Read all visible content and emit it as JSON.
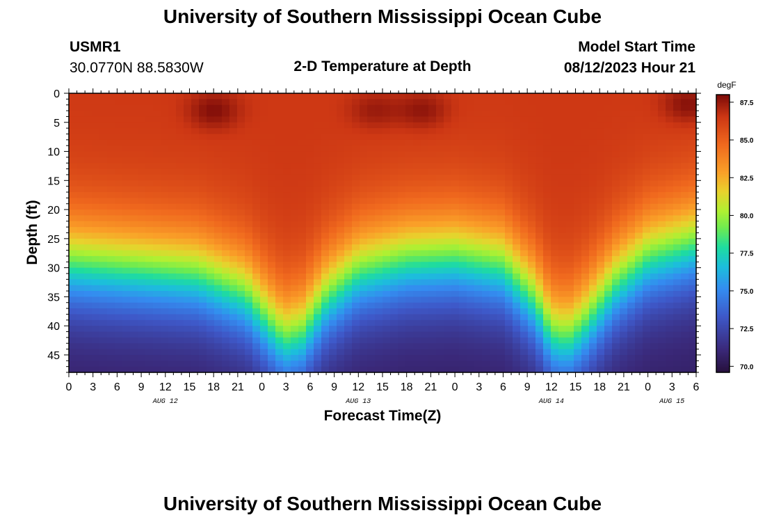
{
  "page": {
    "title_top": "University of Southern Mississippi Ocean Cube",
    "title_bottom": "University of Southern Mississippi Ocean Cube"
  },
  "station": {
    "id": "USMR1",
    "coords": "30.0770N  88.5830W"
  },
  "model": {
    "label": "Model Start Time",
    "start": "08/12/2023 Hour 21"
  },
  "chart_data": {
    "type": "heatmap",
    "title": "2-D Temperature at Depth",
    "xlabel": "Forecast Time(Z)",
    "ylabel": "Depth (ft)",
    "x_range_hours": [
      0,
      78
    ],
    "x_tick_labels": [
      "0",
      "3",
      "6",
      "9",
      "12",
      "15",
      "18",
      "21",
      "0",
      "3",
      "6",
      "9",
      "12",
      "15",
      "18",
      "21",
      "0",
      "3",
      "6",
      "9",
      "12",
      "15",
      "18",
      "21",
      "0",
      "3",
      "6"
    ],
    "date_labels": [
      {
        "label": "AUG 12",
        "hour": 12
      },
      {
        "label": "AUG 13",
        "hour": 36
      },
      {
        "label": "AUG 14",
        "hour": 60
      },
      {
        "label": "AUG 15",
        "hour": 75
      }
    ],
    "y_range_ft": [
      0,
      48
    ],
    "y_ticks": [
      0,
      5,
      10,
      15,
      20,
      25,
      30,
      35,
      40,
      45
    ],
    "colorbar": {
      "unit": "degF",
      "min": 69.6,
      "max": 88.0,
      "tick_values": [
        70.0,
        72.5,
        75.0,
        77.5,
        80.0,
        82.5,
        85.0,
        87.5
      ],
      "tick_labels": [
        "70.0",
        "72.5",
        "75.0",
        "77.5",
        "80.0",
        "82.5",
        "85.0",
        "87.5"
      ]
    },
    "field": {
      "surface_temp_degF": 86.5,
      "bottom_temp_degF": 70.5,
      "thermocline_depth_ft": [
        {
          "hour": 0,
          "depth": 29.5
        },
        {
          "hour": 8,
          "depth": 30.5
        },
        {
          "hour": 16,
          "depth": 31.5
        },
        {
          "hour": 22,
          "depth": 35
        },
        {
          "hour": 26,
          "depth": 41.5
        },
        {
          "hour": 27,
          "depth": 42.5
        },
        {
          "hour": 29,
          "depth": 41.5
        },
        {
          "hour": 32,
          "depth": 35.5
        },
        {
          "hour": 36,
          "depth": 31
        },
        {
          "hour": 42,
          "depth": 29
        },
        {
          "hour": 48,
          "depth": 28.5
        },
        {
          "hour": 54,
          "depth": 30
        },
        {
          "hour": 58,
          "depth": 36
        },
        {
          "hour": 60,
          "depth": 41.5
        },
        {
          "hour": 62,
          "depth": 42.5
        },
        {
          "hour": 64,
          "depth": 40
        },
        {
          "hour": 68,
          "depth": 33
        },
        {
          "hour": 72,
          "depth": 28.5
        },
        {
          "hour": 78,
          "depth": 26
        }
      ],
      "warm_patches": [
        {
          "hour": 18,
          "depth": 3,
          "delta": 1.4
        },
        {
          "hour": 38,
          "depth": 3,
          "delta": 1.0
        },
        {
          "hour": 44,
          "depth": 3,
          "delta": 1.2
        },
        {
          "hour": 77,
          "depth": 2,
          "delta": 1.4
        }
      ]
    }
  }
}
